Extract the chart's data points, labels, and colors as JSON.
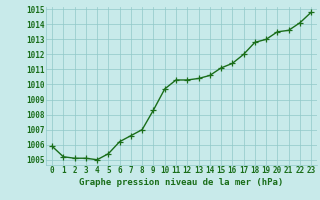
{
  "x": [
    0,
    1,
    2,
    3,
    4,
    5,
    6,
    7,
    8,
    9,
    10,
    11,
    12,
    13,
    14,
    15,
    16,
    17,
    18,
    19,
    20,
    21,
    22,
    23
  ],
  "y": [
    1005.9,
    1005.2,
    1005.1,
    1005.1,
    1005.0,
    1005.4,
    1006.2,
    1006.6,
    1007.0,
    1008.3,
    1009.7,
    1010.3,
    1010.3,
    1010.4,
    1010.6,
    1011.1,
    1011.4,
    1012.0,
    1012.8,
    1013.0,
    1013.5,
    1013.6,
    1014.1,
    1014.8
  ],
  "line_color": "#1a6e1a",
  "marker_color": "#1a6e1a",
  "bg_color": "#c8eaea",
  "grid_color": "#90c8c8",
  "xlabel": "Graphe pression niveau de la mer (hPa)",
  "ytick_min": 1005,
  "ytick_max": 1015,
  "ytick_step": 1,
  "xtick_labels": [
    "0",
    "1",
    "2",
    "3",
    "4",
    "5",
    "6",
    "7",
    "8",
    "9",
    "10",
    "11",
    "12",
    "13",
    "14",
    "15",
    "16",
    "17",
    "18",
    "19",
    "20",
    "21",
    "22",
    "23"
  ],
  "xlabel_fontsize": 6.5,
  "tick_fontsize": 5.5,
  "line_width": 1.0,
  "marker_size": 4.0
}
